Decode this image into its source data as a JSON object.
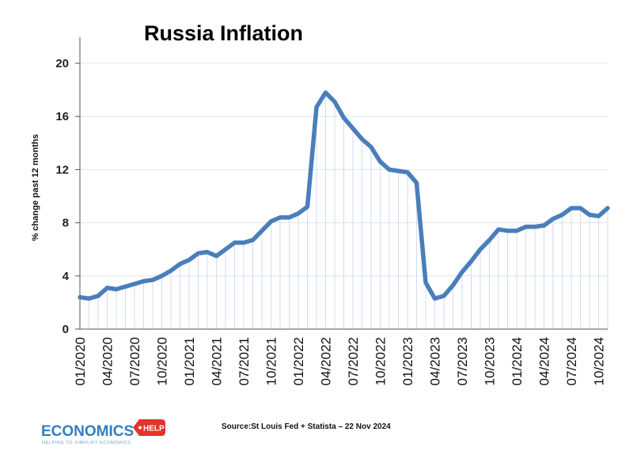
{
  "chart_data": {
    "type": "line",
    "title": "Russia Inflation",
    "ylabel": "% change past 12 months",
    "xlabel": "",
    "ylim": [
      0,
      22
    ],
    "yticks": [
      0,
      4,
      8,
      12,
      16,
      20
    ],
    "x_tick_labels": [
      "01/2020",
      "04/2020",
      "07/2020",
      "10/2020",
      "01/2021",
      "04/2021",
      "07/2021",
      "10/2021",
      "01/2022",
      "04/2022",
      "07/2022",
      "10/2022",
      "01/2023",
      "04/2023",
      "07/2023",
      "10/2023",
      "01/2024",
      "04/2024",
      "07/2024",
      "10/2024"
    ],
    "series": [
      {
        "name": "Russia Inflation",
        "color": "#4a7ebb",
        "values": [
          2.4,
          2.3,
          2.5,
          3.1,
          3.0,
          3.2,
          3.4,
          3.6,
          3.7,
          4.0,
          4.4,
          4.9,
          5.2,
          5.7,
          5.8,
          5.5,
          6.0,
          6.5,
          6.5,
          6.7,
          7.4,
          8.1,
          8.4,
          8.4,
          8.7,
          9.2,
          16.7,
          17.8,
          17.1,
          15.9,
          15.1,
          14.3,
          13.7,
          12.6,
          12.0,
          11.9,
          11.8,
          11.0,
          3.5,
          2.3,
          2.5,
          3.3,
          4.3,
          5.1,
          6.0,
          6.7,
          7.5,
          7.4,
          7.4,
          7.7,
          7.7,
          7.8,
          8.3,
          8.6,
          9.1,
          9.1,
          8.6,
          8.5,
          9.1
        ]
      }
    ]
  },
  "footer": {
    "source": "Source:St Louis Fed + Statista – 22 Nov 2024",
    "logo_word": "ECONOMICS",
    "logo_badge": "HELP",
    "logo_tagline": "HELPING TO SIMPLIFY ECONOMICS"
  }
}
